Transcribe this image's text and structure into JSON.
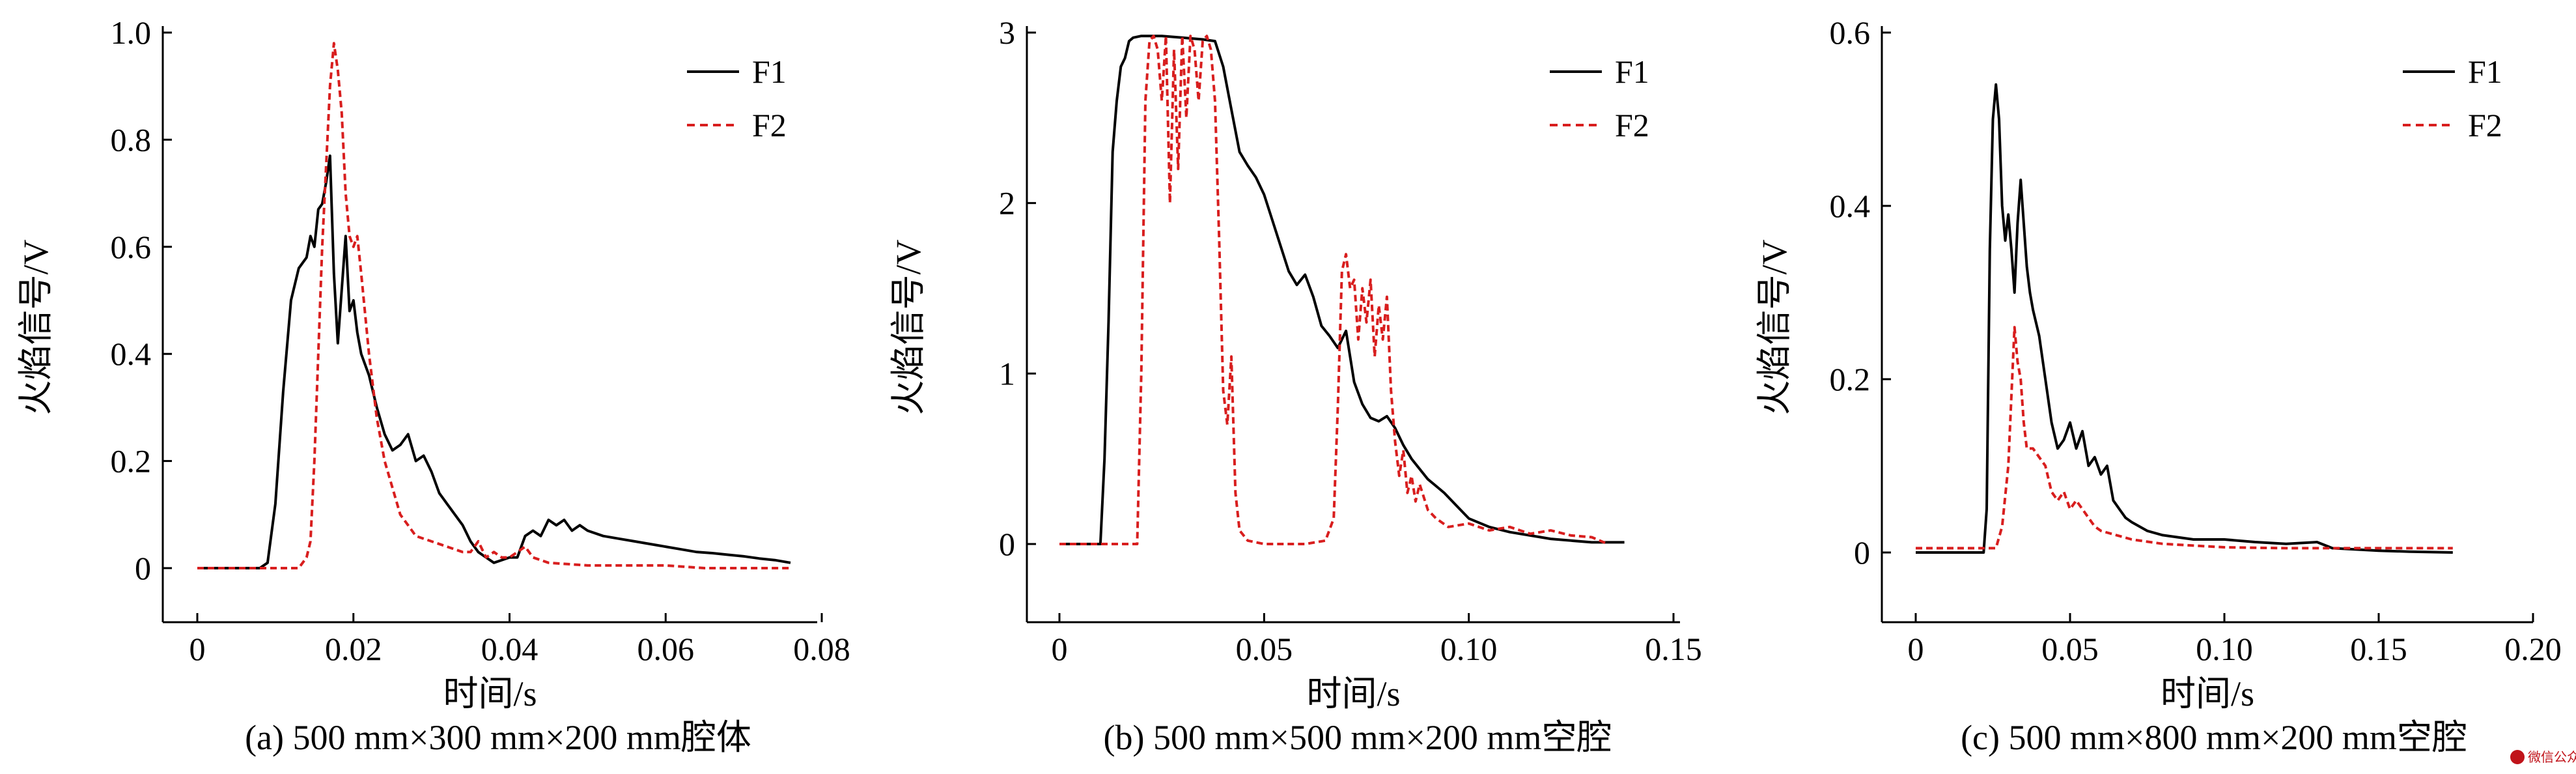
{
  "watermark": "微信公众号 · 燃烧",
  "chart_data": [
    {
      "type": "line",
      "caption": "(a) 500 mm×300 mm×200 mm腔体",
      "xlabel": "时间/s",
      "ylabel": "火焰信号/V",
      "xlim": [
        0,
        0.08
      ],
      "ylim": [
        0,
        1.0
      ],
      "xticks": [
        "0",
        "0.02",
        "0.04",
        "0.06",
        "0.08"
      ],
      "yticks": [
        "0",
        "0.2",
        "0.4",
        "0.6",
        "0.8",
        "1.0"
      ],
      "legend_position": "top-right",
      "series": [
        {
          "name": "F1",
          "color": "#000000",
          "dash": "solid",
          "x": [
            0,
            0.008,
            0.009,
            0.01,
            0.011,
            0.012,
            0.013,
            0.014,
            0.0145,
            0.015,
            0.0155,
            0.016,
            0.0165,
            0.017,
            0.0175,
            0.018,
            0.0185,
            0.019,
            0.0195,
            0.02,
            0.0205,
            0.021,
            0.022,
            0.023,
            0.024,
            0.025,
            0.026,
            0.027,
            0.028,
            0.029,
            0.03,
            0.031,
            0.032,
            0.033,
            0.034,
            0.035,
            0.036,
            0.037,
            0.038,
            0.04,
            0.041,
            0.042,
            0.043,
            0.044,
            0.045,
            0.046,
            0.047,
            0.048,
            0.049,
            0.05,
            0.052,
            0.054,
            0.056,
            0.058,
            0.06,
            0.062,
            0.064,
            0.066,
            0.068,
            0.07,
            0.072,
            0.074,
            0.076
          ],
          "y": [
            0,
            0,
            0.01,
            0.12,
            0.33,
            0.5,
            0.56,
            0.58,
            0.62,
            0.6,
            0.67,
            0.68,
            0.72,
            0.77,
            0.55,
            0.42,
            0.52,
            0.62,
            0.48,
            0.5,
            0.44,
            0.4,
            0.36,
            0.3,
            0.25,
            0.22,
            0.23,
            0.25,
            0.2,
            0.21,
            0.18,
            0.14,
            0.12,
            0.1,
            0.08,
            0.05,
            0.03,
            0.02,
            0.01,
            0.02,
            0.02,
            0.06,
            0.07,
            0.06,
            0.09,
            0.08,
            0.09,
            0.07,
            0.08,
            0.07,
            0.06,
            0.055,
            0.05,
            0.045,
            0.04,
            0.035,
            0.03,
            0.028,
            0.025,
            0.022,
            0.018,
            0.015,
            0.01
          ]
        },
        {
          "name": "F2",
          "color": "#d81e1e",
          "dash": "dashed",
          "x": [
            0,
            0.012,
            0.013,
            0.014,
            0.0145,
            0.015,
            0.0155,
            0.016,
            0.0165,
            0.017,
            0.0175,
            0.018,
            0.0185,
            0.019,
            0.0195,
            0.02,
            0.0205,
            0.021,
            0.022,
            0.023,
            0.024,
            0.025,
            0.026,
            0.027,
            0.028,
            0.03,
            0.032,
            0.034,
            0.035,
            0.036,
            0.037,
            0.038,
            0.039,
            0.04,
            0.041,
            0.042,
            0.043,
            0.045,
            0.05,
            0.055,
            0.06,
            0.065,
            0.07,
            0.076
          ],
          "y": [
            0,
            0,
            0.0,
            0.02,
            0.05,
            0.2,
            0.4,
            0.6,
            0.75,
            0.9,
            0.98,
            0.93,
            0.85,
            0.7,
            0.62,
            0.6,
            0.62,
            0.55,
            0.4,
            0.28,
            0.2,
            0.15,
            0.1,
            0.08,
            0.06,
            0.05,
            0.04,
            0.03,
            0.03,
            0.05,
            0.02,
            0.03,
            0.02,
            0.02,
            0.03,
            0.04,
            0.02,
            0.01,
            0.005,
            0.005,
            0.005,
            0.0,
            0.0,
            0.0
          ]
        }
      ]
    },
    {
      "type": "line",
      "caption": "(b) 500 mm×500 mm×200 mm空腔",
      "xlabel": "时间/s",
      "ylabel": "火焰信号/V",
      "xlim": [
        0,
        0.15
      ],
      "ylim": [
        0,
        3.0
      ],
      "xticks": [
        "0",
        "0.05",
        "0.10",
        "0.15"
      ],
      "yticks": [
        "0",
        "1",
        "2",
        "3"
      ],
      "legend_position": "top-right",
      "series": [
        {
          "name": "F1",
          "color": "#000000",
          "dash": "solid",
          "x": [
            0,
            0.01,
            0.011,
            0.012,
            0.013,
            0.014,
            0.015,
            0.016,
            0.017,
            0.018,
            0.02,
            0.025,
            0.03,
            0.035,
            0.038,
            0.04,
            0.042,
            0.044,
            0.046,
            0.048,
            0.05,
            0.052,
            0.054,
            0.056,
            0.058,
            0.06,
            0.062,
            0.064,
            0.066,
            0.068,
            0.07,
            0.072,
            0.074,
            0.076,
            0.078,
            0.08,
            0.082,
            0.084,
            0.086,
            0.088,
            0.09,
            0.092,
            0.094,
            0.096,
            0.098,
            0.1,
            0.105,
            0.11,
            0.115,
            0.12,
            0.125,
            0.13,
            0.138
          ],
          "y": [
            0,
            0,
            0.5,
            1.3,
            2.3,
            2.6,
            2.8,
            2.85,
            2.95,
            2.97,
            2.98,
            2.98,
            2.97,
            2.96,
            2.95,
            2.8,
            2.55,
            2.3,
            2.22,
            2.15,
            2.05,
            1.9,
            1.75,
            1.6,
            1.52,
            1.58,
            1.45,
            1.28,
            1.22,
            1.15,
            1.25,
            0.95,
            0.82,
            0.74,
            0.72,
            0.75,
            0.68,
            0.58,
            0.5,
            0.44,
            0.38,
            0.34,
            0.3,
            0.25,
            0.2,
            0.15,
            0.1,
            0.07,
            0.05,
            0.03,
            0.02,
            0.01,
            0.01
          ]
        },
        {
          "name": "F2",
          "color": "#d81e1e",
          "dash": "dashed",
          "x": [
            0,
            0.019,
            0.02,
            0.021,
            0.022,
            0.023,
            0.024,
            0.025,
            0.026,
            0.027,
            0.028,
            0.029,
            0.03,
            0.031,
            0.032,
            0.033,
            0.034,
            0.035,
            0.036,
            0.037,
            0.038,
            0.039,
            0.04,
            0.041,
            0.042,
            0.043,
            0.044,
            0.046,
            0.05,
            0.055,
            0.06,
            0.065,
            0.067,
            0.068,
            0.069,
            0.07,
            0.071,
            0.072,
            0.073,
            0.074,
            0.075,
            0.076,
            0.077,
            0.078,
            0.079,
            0.08,
            0.081,
            0.082,
            0.083,
            0.084,
            0.085,
            0.086,
            0.087,
            0.088,
            0.09,
            0.092,
            0.095,
            0.1,
            0.105,
            0.11,
            0.115,
            0.12,
            0.125,
            0.13,
            0.134
          ],
          "y": [
            0,
            0,
            1.0,
            2.6,
            2.95,
            2.98,
            2.9,
            2.6,
            2.98,
            2.0,
            2.9,
            2.2,
            2.98,
            2.5,
            2.98,
            2.9,
            2.6,
            2.95,
            2.98,
            2.9,
            2.6,
            1.8,
            0.9,
            0.7,
            1.1,
            0.3,
            0.08,
            0.02,
            0.0,
            0.0,
            0.0,
            0.02,
            0.15,
            0.8,
            1.6,
            1.7,
            1.5,
            1.55,
            1.2,
            1.5,
            1.3,
            1.55,
            1.1,
            1.4,
            1.2,
            1.45,
            0.9,
            0.6,
            0.4,
            0.55,
            0.3,
            0.4,
            0.25,
            0.35,
            0.2,
            0.15,
            0.1,
            0.12,
            0.08,
            0.1,
            0.06,
            0.08,
            0.05,
            0.04,
            0.0
          ]
        }
      ]
    },
    {
      "type": "line",
      "caption": "(c) 500 mm×800 mm×200 mm空腔",
      "xlabel": "时间/s",
      "ylabel": "火焰信号/V",
      "xlim": [
        0,
        0.2
      ],
      "ylim": [
        0,
        0.6
      ],
      "xticks": [
        "0",
        "0.05",
        "0.10",
        "0.15",
        "0.20"
      ],
      "yticks": [
        "0",
        "0.2",
        "0.4",
        "0.6"
      ],
      "legend_position": "top-right",
      "series": [
        {
          "name": "F1",
          "color": "#000000",
          "dash": "solid",
          "x": [
            0,
            0.022,
            0.023,
            0.024,
            0.025,
            0.026,
            0.027,
            0.028,
            0.029,
            0.03,
            0.031,
            0.032,
            0.033,
            0.034,
            0.035,
            0.036,
            0.037,
            0.038,
            0.04,
            0.042,
            0.044,
            0.046,
            0.048,
            0.05,
            0.052,
            0.054,
            0.056,
            0.058,
            0.06,
            0.062,
            0.064,
            0.066,
            0.068,
            0.07,
            0.075,
            0.08,
            0.09,
            0.1,
            0.11,
            0.12,
            0.13,
            0.135,
            0.15,
            0.16,
            0.174
          ],
          "y": [
            0,
            0,
            0.05,
            0.35,
            0.5,
            0.54,
            0.5,
            0.4,
            0.36,
            0.39,
            0.35,
            0.3,
            0.38,
            0.43,
            0.38,
            0.33,
            0.3,
            0.28,
            0.25,
            0.2,
            0.15,
            0.12,
            0.13,
            0.15,
            0.12,
            0.14,
            0.1,
            0.11,
            0.09,
            0.1,
            0.06,
            0.05,
            0.04,
            0.035,
            0.025,
            0.02,
            0.015,
            0.015,
            0.012,
            0.01,
            0.012,
            0.005,
            0.002,
            0.001,
            0.0
          ]
        },
        {
          "name": "F2",
          "color": "#d81e1e",
          "dash": "dashed",
          "x": [
            0,
            0.026,
            0.028,
            0.03,
            0.031,
            0.032,
            0.033,
            0.034,
            0.035,
            0.036,
            0.037,
            0.038,
            0.04,
            0.042,
            0.044,
            0.046,
            0.048,
            0.05,
            0.052,
            0.054,
            0.056,
            0.058,
            0.06,
            0.065,
            0.07,
            0.08,
            0.09,
            0.1,
            0.12,
            0.15,
            0.174
          ],
          "y": [
            0.005,
            0.005,
            0.03,
            0.1,
            0.18,
            0.26,
            0.22,
            0.2,
            0.15,
            0.12,
            0.12,
            0.12,
            0.11,
            0.1,
            0.07,
            0.06,
            0.07,
            0.05,
            0.06,
            0.05,
            0.04,
            0.03,
            0.025,
            0.02,
            0.015,
            0.01,
            0.008,
            0.006,
            0.005,
            0.005,
            0.005
          ]
        }
      ]
    }
  ]
}
